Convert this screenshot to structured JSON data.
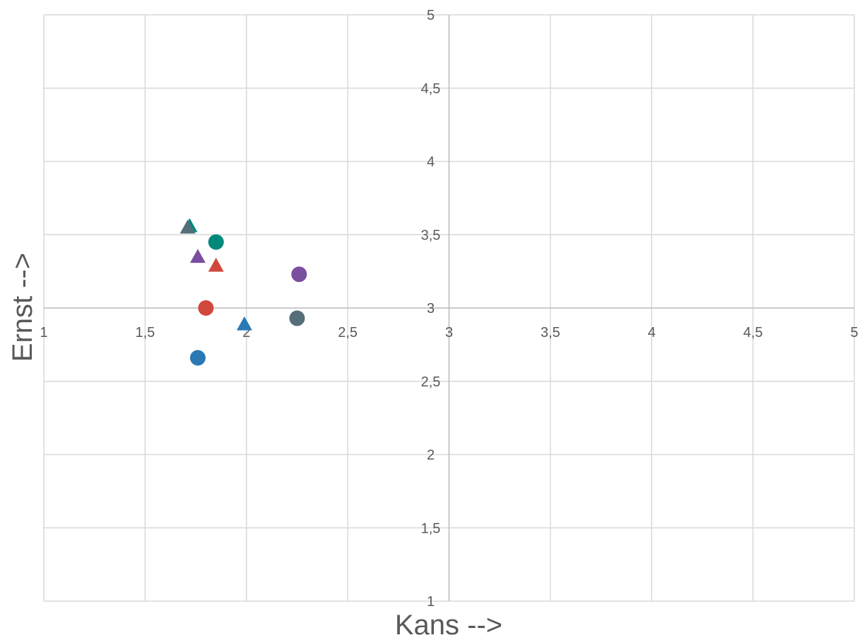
{
  "chart_data": {
    "type": "scatter",
    "xlabel": "Kans -->",
    "ylabel": "Ernst -->",
    "xlim": [
      1,
      5
    ],
    "ylim": [
      1,
      5
    ],
    "x_ticks": [
      "1",
      "1,5",
      "2",
      "2,5",
      "3",
      "3,5",
      "4",
      "4,5",
      "5"
    ],
    "y_ticks": [
      "1",
      "1,5",
      "2",
      "2,5",
      "3",
      "3,5",
      "4",
      "4,5",
      "5"
    ],
    "x_tick_values": [
      1,
      1.5,
      2,
      2.5,
      3,
      3.5,
      4,
      4.5,
      5
    ],
    "y_tick_values": [
      1,
      1.5,
      2,
      2.5,
      3,
      3.5,
      4,
      4.5,
      5
    ],
    "axes_cross": [
      3,
      3
    ],
    "grid": true,
    "legend": "none",
    "points": [
      {
        "x": 1.72,
        "y": 3.56,
        "shape": "triangle",
        "color": "#00897b"
      },
      {
        "x": 1.71,
        "y": 3.55,
        "shape": "triangle",
        "color": "#546e7a"
      },
      {
        "x": 1.85,
        "y": 3.45,
        "shape": "circle",
        "color": "#00897b"
      },
      {
        "x": 1.76,
        "y": 3.35,
        "shape": "triangle",
        "color": "#7b4fa0"
      },
      {
        "x": 1.85,
        "y": 3.29,
        "shape": "triangle",
        "color": "#d0483b"
      },
      {
        "x": 2.26,
        "y": 3.23,
        "shape": "circle",
        "color": "#7b4fa0"
      },
      {
        "x": 1.8,
        "y": 3.0,
        "shape": "circle",
        "color": "#d0483b"
      },
      {
        "x": 2.25,
        "y": 2.93,
        "shape": "circle",
        "color": "#546e7a"
      },
      {
        "x": 1.99,
        "y": 2.89,
        "shape": "triangle",
        "color": "#2979b5"
      },
      {
        "x": 1.76,
        "y": 2.66,
        "shape": "circle",
        "color": "#2979b5"
      }
    ]
  }
}
